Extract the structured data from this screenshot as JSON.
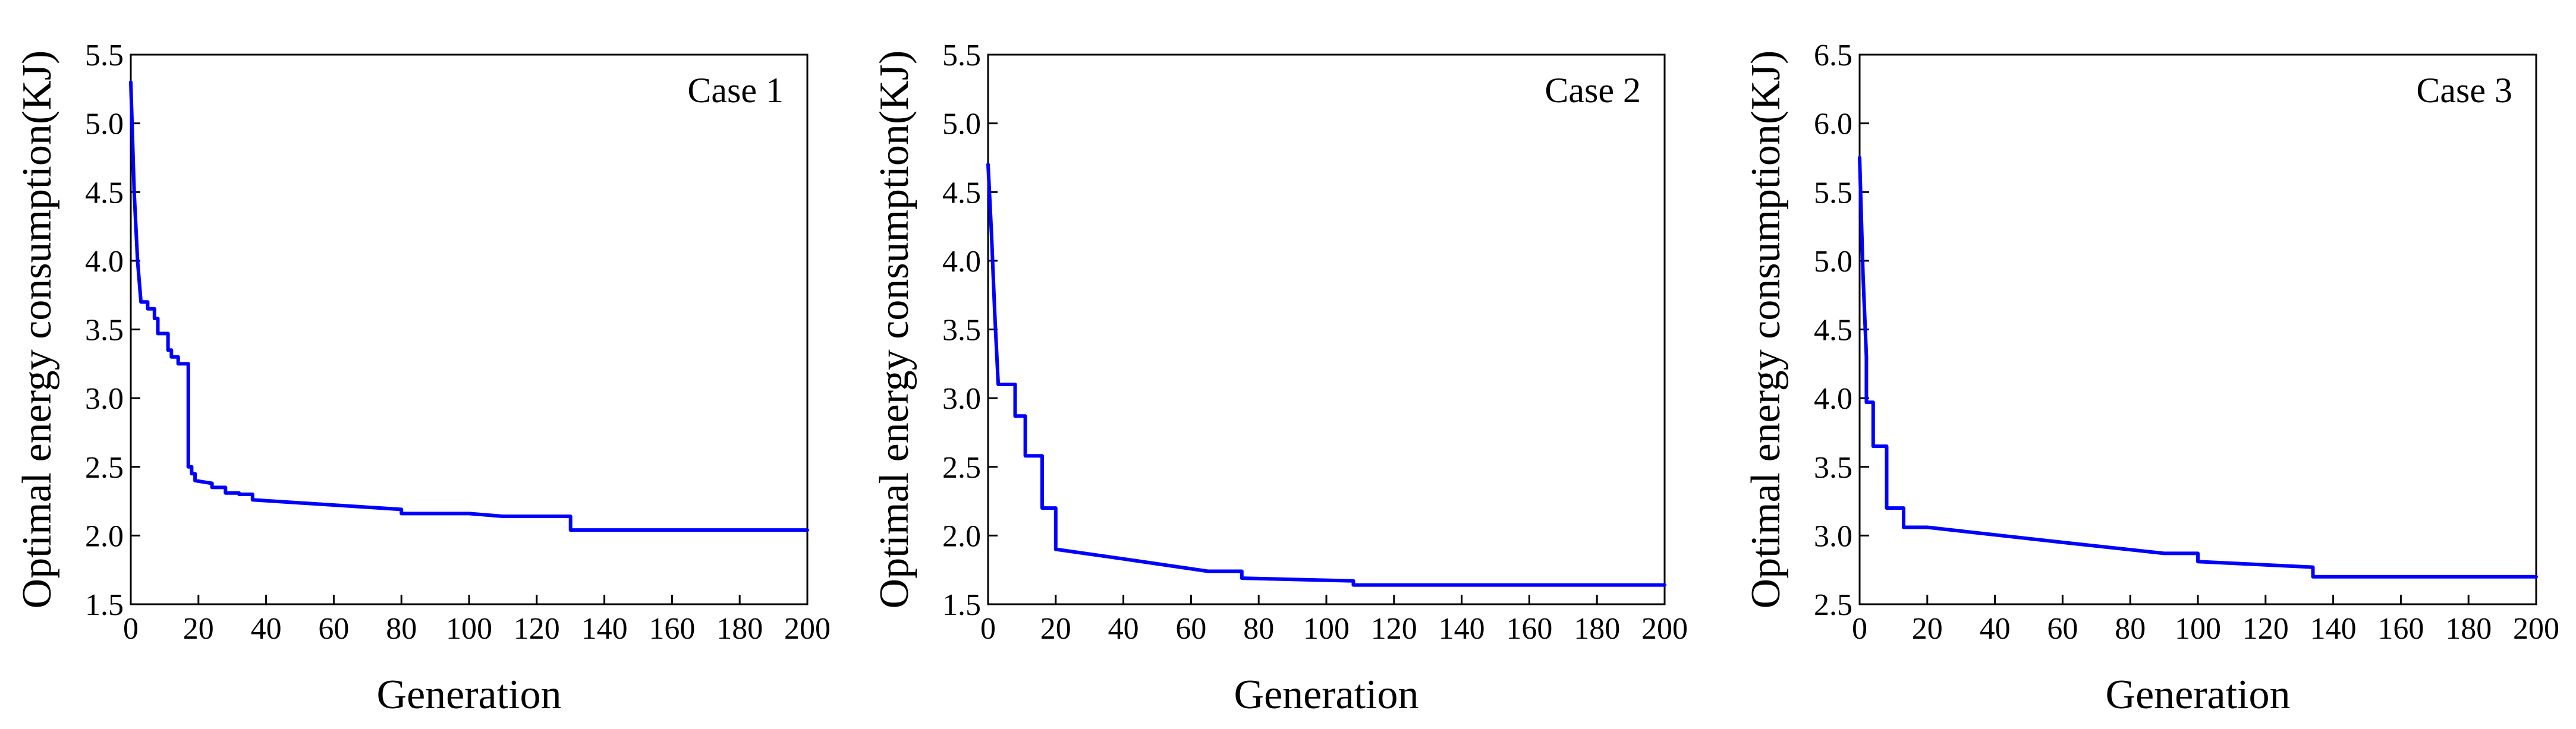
{
  "figure": {
    "line_color": "#0000ff",
    "axis_color": "#000000",
    "background": "#ffffff"
  },
  "chart_data": [
    {
      "type": "line",
      "case_label": "Case 1",
      "title": "",
      "xlabel": "Generation",
      "ylabel": "Optimal energy consumption(KJ)",
      "xlim": [
        0,
        200
      ],
      "ylim": [
        1.5,
        5.5
      ],
      "xticks": [
        0,
        20,
        40,
        60,
        80,
        100,
        120,
        140,
        160,
        180,
        200
      ],
      "yticks": [
        "1.5",
        "2.0",
        "2.5",
        "3.0",
        "3.5",
        "4.0",
        "4.5",
        "5.0",
        "5.5"
      ],
      "series": [
        {
          "name": "Case 1",
          "x": [
            0,
            1,
            2,
            3,
            4,
            5,
            5,
            7,
            7,
            8,
            8,
            11,
            11,
            12,
            12,
            14,
            14,
            17,
            17,
            18,
            18,
            19,
            19,
            24,
            24,
            28,
            28,
            32,
            32,
            36,
            36,
            80,
            80,
            100,
            110,
            130,
            130,
            200
          ],
          "y": [
            5.3,
            4.5,
            4.0,
            3.7,
            3.7,
            3.7,
            3.65,
            3.65,
            3.58,
            3.58,
            3.47,
            3.47,
            3.35,
            3.35,
            3.3,
            3.3,
            3.25,
            3.25,
            2.5,
            2.5,
            2.45,
            2.45,
            2.4,
            2.38,
            2.35,
            2.35,
            2.31,
            2.31,
            2.3,
            2.3,
            2.26,
            2.19,
            2.16,
            2.16,
            2.14,
            2.14,
            2.04,
            2.04
          ]
        }
      ]
    },
    {
      "type": "line",
      "case_label": "Case 2",
      "title": "",
      "xlabel": "Generation",
      "ylabel": "Optimal energy consumption(KJ)",
      "xlim": [
        0,
        200
      ],
      "ylim": [
        1.5,
        5.5
      ],
      "xticks": [
        0,
        20,
        40,
        60,
        80,
        100,
        120,
        140,
        160,
        180,
        200
      ],
      "yticks": [
        "1.5",
        "2.0",
        "2.5",
        "3.0",
        "3.5",
        "4.0",
        "4.5",
        "5.0",
        "5.5"
      ],
      "series": [
        {
          "name": "Case 2",
          "x": [
            0,
            1,
            2,
            3,
            3,
            8,
            8,
            9,
            9,
            11,
            11,
            16,
            16,
            18,
            18,
            20,
            20,
            40,
            65,
            75,
            75,
            108,
            108,
            200
          ],
          "y": [
            4.7,
            4.2,
            3.6,
            3.1,
            3.1,
            3.1,
            2.87,
            2.87,
            2.87,
            2.87,
            2.58,
            2.58,
            2.2,
            2.2,
            2.2,
            2.2,
            1.9,
            1.83,
            1.74,
            1.74,
            1.69,
            1.67,
            1.64,
            1.64
          ]
        }
      ]
    },
    {
      "type": "line",
      "case_label": "Case 3",
      "title": "",
      "xlabel": "Generation",
      "ylabel": "Optimal energy consumption(KJ)",
      "xlim": [
        0,
        200
      ],
      "ylim": [
        2.5,
        6.5
      ],
      "xticks": [
        0,
        20,
        40,
        60,
        80,
        100,
        120,
        140,
        160,
        180,
        200
      ],
      "yticks": [
        "2.5",
        "3.0",
        "3.5",
        "4.0",
        "4.5",
        "5.0",
        "5.5",
        "6.0",
        "6.5"
      ],
      "series": [
        {
          "name": "Case 3",
          "x": [
            0,
            1,
            2,
            2,
            4,
            4,
            8,
            8,
            11,
            11,
            13,
            13,
            20,
            60,
            90,
            100,
            100,
            134,
            134,
            200
          ],
          "y": [
            5.75,
            4.9,
            4.3,
            3.97,
            3.97,
            3.65,
            3.65,
            3.2,
            3.2,
            3.2,
            3.2,
            3.06,
            3.06,
            2.95,
            2.87,
            2.87,
            2.81,
            2.77,
            2.7,
            2.7
          ]
        }
      ]
    }
  ]
}
